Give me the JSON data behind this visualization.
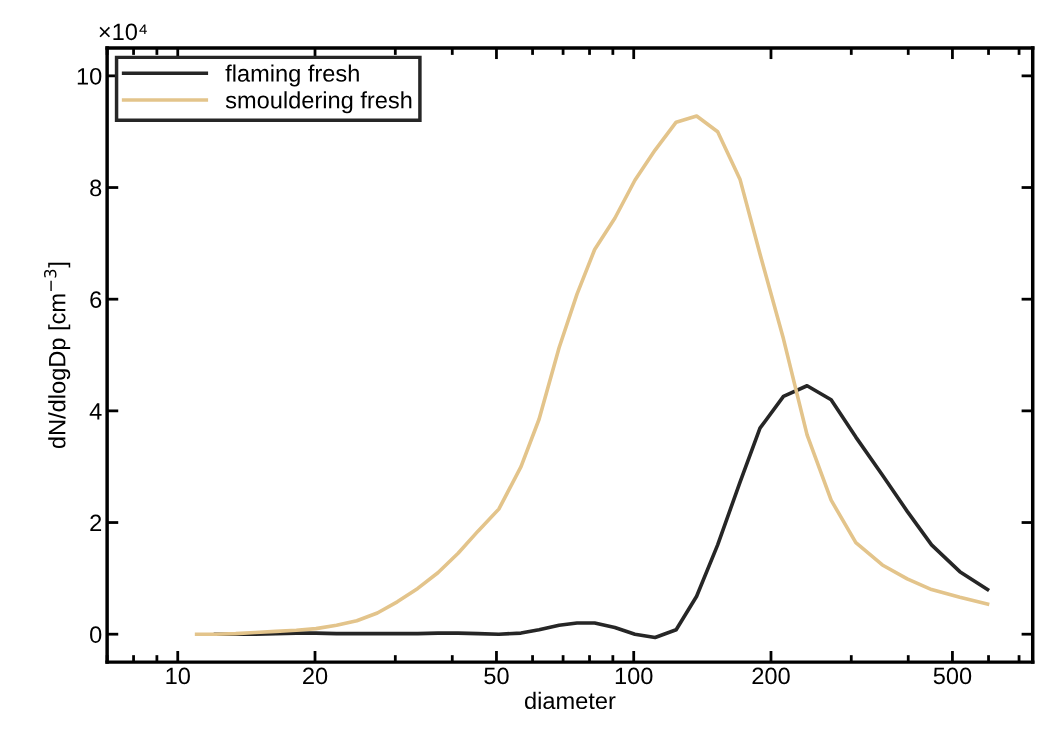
{
  "chart_data": {
    "type": "line",
    "xlabel": "diameter",
    "ylabel": "dN/dlogDp [cm$^{−3}$]",
    "annotations": [
      "×10⁴"
    ],
    "x": [
      11.0,
      12.1,
      13.4,
      14.8,
      16.4,
      18.2,
      20.1,
      22.3,
      24.7,
      27.4,
      30.3,
      33.6,
      37.2,
      41.2,
      45.6,
      50.6,
      56.6,
      62.0,
      68.6,
      75.1,
      82.1,
      90.9,
      100.6,
      111.4,
      123.9,
      137.4,
      152.8,
      171.0,
      189.2,
      213.0,
      240.0,
      271,
      307,
      351,
      398,
      450,
      519,
      597
    ],
    "series": [
      {
        "name": "flaming fresh",
        "color": "#262626",
        "values": [
          null,
          0,
          0,
          0,
          0.01,
          0.02,
          0.02,
          0.01,
          0.01,
          0.01,
          0.01,
          0.01,
          0.02,
          0.02,
          0.01,
          0.0,
          0.02,
          0.08,
          0.16,
          0.2,
          0.2,
          0.12,
          0.0,
          -0.06,
          0.08,
          0.68,
          1.6,
          2.72,
          3.69,
          4.26,
          4.45,
          4.2,
          3.53,
          2.85,
          2.2,
          1.6,
          1.12,
          0.8
        ]
      },
      {
        "name": "smouldering fresh",
        "color": "#e3c48b",
        "values": [
          0.0,
          0.0,
          0.01,
          0.03,
          0.05,
          0.07,
          0.1,
          0.16,
          0.24,
          0.38,
          0.58,
          0.82,
          1.1,
          1.45,
          1.85,
          2.24,
          3.0,
          3.85,
          5.13,
          6.09,
          6.89,
          7.45,
          8.13,
          8.67,
          9.17,
          9.28,
          9.0,
          8.15,
          6.81,
          5.29,
          3.57,
          2.4,
          1.64,
          1.24,
          0.99,
          0.8,
          0.66,
          0.54
        ]
      }
    ],
    "log": "x",
    "xlim": [
      7,
      750
    ],
    "xticks": [
      10,
      20,
      50,
      100,
      200,
      500
    ],
    "ylim": [
      -0.5,
      10.5
    ],
    "yticks": [
      0,
      2,
      4,
      6,
      8,
      10
    ],
    "grid": false,
    "legend": "top left",
    "line_style": "solid",
    "marker": "none"
  }
}
